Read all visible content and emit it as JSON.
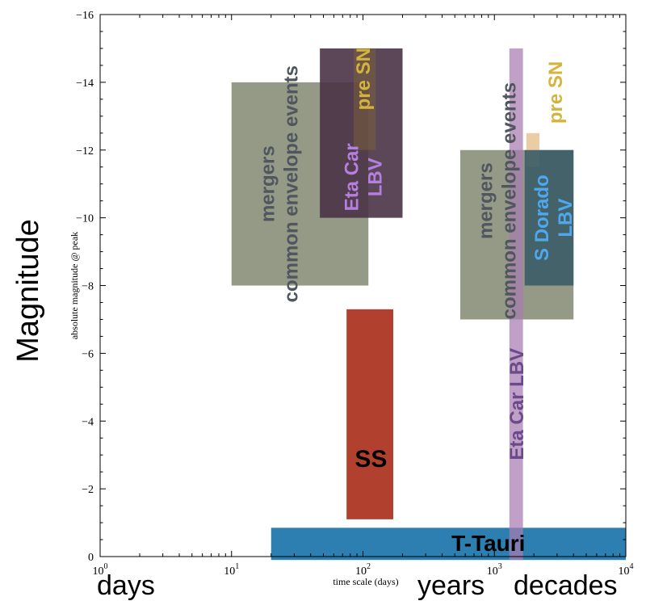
{
  "chart_data": {
    "type": "bar",
    "xscale": "log",
    "xlim": [
      1,
      10000
    ],
    "ylim": [
      0,
      -16
    ],
    "xlabel": "time scale (days)",
    "ylabel": "absolute magnitude @ peak",
    "big_ylabel": "Magnitude",
    "big_xlabels": [
      "days",
      "years",
      "decades"
    ],
    "xticks": [
      {
        "value": 1,
        "base": "10",
        "exp": "0"
      },
      {
        "value": 10,
        "base": "10",
        "exp": "1"
      },
      {
        "value": 100,
        "base": "10",
        "exp": "2"
      },
      {
        "value": 1000,
        "base": "10",
        "exp": "3"
      },
      {
        "value": 10000,
        "base": "10",
        "exp": "4"
      }
    ],
    "yticks": [
      0,
      -2,
      -4,
      -6,
      -8,
      -10,
      -12,
      -14,
      -16
    ],
    "grid": false,
    "regions": [
      {
        "name": "mergers-1",
        "x": [
          10,
          110
        ],
        "y": [
          -8,
          -14
        ],
        "color": "#8e957f",
        "opacity": 0.95
      },
      {
        "name": "eta-car-lbv-box",
        "x": [
          47,
          200
        ],
        "y": [
          -10,
          -15
        ],
        "color": "#4a3346",
        "opacity": 0.9
      },
      {
        "name": "pre-sn-1-box",
        "x": [
          85,
          125
        ],
        "y": [
          -12,
          -15
        ],
        "color": "#7a5f3c",
        "opacity": 0.55
      },
      {
        "name": "ss-box",
        "x": [
          75,
          170
        ],
        "y": [
          -1.1,
          -7.3
        ],
        "color": "#b2402e",
        "opacity": 1
      },
      {
        "name": "mergers-2",
        "x": [
          550,
          4000
        ],
        "y": [
          -7,
          -12
        ],
        "color": "#8e957f",
        "opacity": 0.95
      },
      {
        "name": "pre-sn-2-box",
        "x": [
          1750,
          2200
        ],
        "y": [
          -11.5,
          -12.5
        ],
        "color": "#e8c89a",
        "opacity": 0.9
      },
      {
        "name": "s-dorado-box",
        "x": [
          1700,
          4000
        ],
        "y": [
          -8,
          -12
        ],
        "color": "#3a5c66",
        "opacity": 0.9
      },
      {
        "name": "t-tauri-box",
        "x": [
          20,
          10000
        ],
        "y": [
          0.1,
          -0.85
        ],
        "color": "#2c7fb0",
        "opacity": 1
      },
      {
        "name": "eta-car-lbv-strip",
        "x": [
          1300,
          1650
        ],
        "y": [
          0.1,
          -15
        ],
        "color": "#a77bb0",
        "opacity": 0.72
      }
    ],
    "labels": [
      {
        "id": "mergers",
        "lines": [
          "mergers",
          "common envelope events"
        ],
        "color": "#4f565e",
        "size": 24,
        "x": 23,
        "y": -11,
        "rotate": -90
      },
      {
        "id": "eta_car_lbv_1",
        "lines": [
          "Eta Car",
          "LBV"
        ],
        "color": "#b57fe0",
        "size": 24,
        "x": 100,
        "y": -11.2,
        "rotate": -90
      },
      {
        "id": "pre_sn_1",
        "lines": [
          "pre SN"
        ],
        "color": "#d4b43a",
        "size": 24,
        "x": 100,
        "y": -14.1,
        "rotate": -90
      },
      {
        "id": "mergers_2",
        "lines": [
          "mergers",
          "common envelope events"
        ],
        "color": "#4f565e",
        "size": 24,
        "x": 1050,
        "y": -10.5,
        "rotate": -90
      },
      {
        "id": "s_dorado",
        "lines": [
          "S Dorado",
          "LBV"
        ],
        "color": "#4fa8ee",
        "size": 24,
        "x": 2800,
        "y": -10,
        "rotate": -90
      },
      {
        "id": "pre_sn_2",
        "lines": [
          "pre SN"
        ],
        "color": "#d4b43a",
        "size": 24,
        "x": 2900,
        "y": -13.7,
        "rotate": -90
      },
      {
        "id": "eta_car_lbv_2",
        "lines": [
          "Eta Car LBV"
        ],
        "color": "#6b4a8c",
        "size": 24,
        "x": 1470,
        "y": -4.5,
        "rotate": -90
      },
      {
        "id": "ss",
        "lines": [
          "SS"
        ],
        "color": "#000000",
        "size": 30,
        "weight": "300",
        "x": 115,
        "y": -2.9,
        "rotate": 0
      },
      {
        "id": "t_tauri",
        "lines": [
          "T-Tauri"
        ],
        "color": "#000000",
        "size": 28,
        "x": 900,
        "y": -0.4,
        "rotate": 0
      }
    ]
  }
}
